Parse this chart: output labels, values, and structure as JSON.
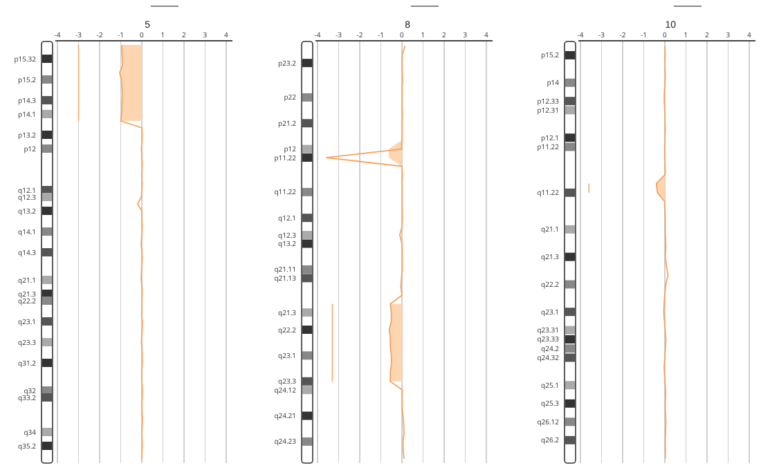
{
  "chart_data": [
    {
      "type": "line",
      "orientation": "horizontal",
      "title": "5",
      "xlim": [
        -4.1,
        4.3
      ],
      "xticks": [
        -4,
        -3,
        -2,
        -1,
        0,
        1,
        2,
        3,
        4
      ],
      "grid": "x",
      "categories": [
        null,
        null,
        "p15.32",
        null,
        null,
        "p15.2",
        null,
        null,
        "p14.3",
        null,
        "p14.1",
        null,
        null,
        "p13.2",
        null,
        "p12",
        null,
        null,
        null,
        null,
        null,
        "q12.1",
        "q12.3",
        null,
        "q13.2",
        null,
        null,
        "q14.1",
        null,
        null,
        "q14.3",
        null,
        null,
        null,
        "q21.1",
        null,
        "q21.3",
        "q22.2",
        null,
        null,
        "q23.1",
        null,
        null,
        "q23.3",
        null,
        null,
        "q31.2",
        null,
        null,
        null,
        "q32",
        "q33.2",
        null,
        null,
        null,
        null,
        "q34",
        null,
        "q35.2",
        null,
        null
      ],
      "series": [
        {
          "type": "area",
          "color": "#fdd5b1",
          "values": [
            -0.95,
            -0.95,
            -0.93,
            -0.92,
            -1.05,
            -0.97,
            -0.95,
            -0.93,
            -0.94,
            -0.95,
            -0.96,
            -1.0,
            null,
            null,
            null,
            null,
            null,
            null,
            null,
            null,
            null,
            null,
            null,
            null,
            null,
            null,
            null,
            null,
            null,
            null,
            null,
            null,
            null,
            null,
            null,
            null,
            null,
            null,
            null,
            null,
            null,
            null,
            null,
            null,
            null,
            null,
            null,
            null,
            null,
            null,
            null,
            null,
            null,
            null,
            null,
            null,
            null,
            null,
            null,
            null,
            null
          ]
        },
        {
          "color": "#f5a35c",
          "values": [
            -0.95,
            -0.95,
            -0.93,
            -0.92,
            -1.05,
            -0.97,
            -0.95,
            -0.93,
            -0.94,
            -0.95,
            -0.96,
            -1.0,
            0,
            0.02,
            0.01,
            -0.02,
            0,
            0.02,
            0.01,
            -0.01,
            0.02,
            0,
            -0.02,
            -0.2,
            0,
            0,
            0.02,
            0.01,
            -0.01,
            -0.03,
            0.01,
            0.02,
            0,
            -0.02,
            -0.03,
            0.01,
            0.02,
            0,
            0.01,
            -0.01,
            0.03,
            0.02,
            0,
            -0.02,
            0.01,
            0.02,
            0.02,
            0,
            -0.01,
            0.01,
            0.03,
            0.02,
            0,
            0.01,
            0.03,
            0.02,
            0,
            0.01,
            0.02,
            0.01,
            0
          ]
        },
        {
          "color": "#f7b27a",
          "values": [
            -3,
            -3,
            -3,
            -3,
            -3,
            -3,
            -3,
            -3,
            -3,
            -3,
            -3,
            -3,
            null,
            null,
            null,
            null,
            null,
            null,
            null,
            null,
            null,
            null,
            null,
            null,
            null,
            null,
            null,
            null,
            null,
            null,
            null,
            null,
            null,
            null,
            null,
            null,
            null,
            null,
            null,
            null,
            null,
            null,
            null,
            null,
            null,
            null,
            null,
            null,
            null,
            null,
            null,
            null,
            null,
            null,
            null,
            null,
            null,
            null,
            null,
            null,
            null
          ]
        }
      ]
    },
    {
      "type": "line",
      "orientation": "horizontal",
      "title": "8",
      "xlim": [
        -4.1,
        4.3
      ],
      "xticks": [
        -4,
        -3,
        -2,
        -1,
        0,
        1,
        2,
        3,
        4
      ],
      "grid": "x",
      "categories": [
        null,
        null,
        "p23.2",
        null,
        null,
        null,
        "p22",
        null,
        null,
        "p21.2",
        null,
        null,
        "p12",
        "p11.22",
        null,
        null,
        null,
        "q11.22",
        null,
        null,
        "q12.1",
        null,
        "q12.3",
        "q13.2",
        null,
        null,
        "q21.11",
        "q21.13",
        null,
        null,
        null,
        "q21.3",
        null,
        "q22.2",
        null,
        null,
        "q23.1",
        null,
        null,
        "q23.3",
        "q24.12",
        null,
        null,
        "q24.21",
        null,
        null,
        "q24.23",
        null,
        null
      ],
      "series": [
        {
          "type": "area",
          "color": "#fdd5b1",
          "values": [
            null,
            null,
            null,
            null,
            null,
            null,
            null,
            null,
            null,
            null,
            null,
            0,
            -0.6,
            -0.6,
            0,
            null,
            null,
            null,
            null,
            null,
            null,
            null,
            null,
            null,
            null,
            null,
            null,
            null,
            null,
            null,
            null,
            null,
            null,
            null,
            null,
            null,
            null,
            null,
            null,
            null,
            null,
            null,
            null,
            null,
            null,
            null,
            null,
            null,
            null
          ]
        },
        {
          "type": "area",
          "color": "#fdd5b1",
          "values": [
            null,
            null,
            null,
            null,
            null,
            null,
            null,
            null,
            null,
            null,
            null,
            null,
            null,
            null,
            null,
            null,
            null,
            null,
            null,
            null,
            null,
            null,
            null,
            null,
            null,
            null,
            null,
            null,
            null,
            null,
            -0.55,
            -0.5,
            -0.5,
            -0.6,
            -0.55,
            -0.55,
            -0.5,
            -0.5,
            -0.55,
            -0.55,
            null,
            null,
            null,
            null,
            null,
            null,
            null,
            null,
            null
          ]
        },
        {
          "color": "#f5a35c",
          "values": [
            0.15,
            0.02,
            0,
            0.01,
            0.03,
            0,
            0.01,
            0,
            0.02,
            0,
            0.01,
            0,
            -0.02,
            -3.6,
            0,
            0.02,
            0,
            0.01,
            0,
            0.01,
            0.02,
            0,
            -0.1,
            0,
            0.02,
            0.01,
            0.02,
            -0.02,
            -0.05,
            0,
            -0.55,
            -0.5,
            -0.5,
            -0.6,
            -0.55,
            -0.55,
            -0.5,
            -0.5,
            -0.55,
            -0.55,
            0.02,
            0,
            0.01,
            0.05,
            0.08,
            0.1,
            0.05,
            0.06,
            0.1
          ]
        },
        {
          "color": "#f7b27a",
          "values": [
            null,
            null,
            null,
            null,
            null,
            null,
            null,
            null,
            null,
            null,
            null,
            null,
            null,
            null,
            null,
            null,
            null,
            null,
            null,
            null,
            null,
            null,
            null,
            null,
            null,
            null,
            null,
            null,
            null,
            null,
            -3.3,
            -3.3,
            -3.3,
            -3.3,
            -3.3,
            -3.3,
            -3.3,
            -3.3,
            -3.3,
            -3.3,
            null,
            null,
            null,
            null,
            null,
            null,
            null,
            null,
            null
          ]
        }
      ]
    },
    {
      "type": "line",
      "orientation": "horizontal",
      "title": "10",
      "xlim": [
        -4.1,
        4.3
      ],
      "xticks": [
        -4,
        -3,
        -2,
        -1,
        0,
        1,
        2,
        3,
        4
      ],
      "grid": "x",
      "categories": [
        null,
        "p15.2",
        null,
        null,
        "p14",
        null,
        "p12.33",
        "p12.31",
        null,
        null,
        "p12.1",
        "p11.22",
        null,
        null,
        null,
        null,
        "q11.22",
        null,
        null,
        null,
        "q21.1",
        null,
        null,
        "q21.3",
        null,
        null,
        "q22.2",
        null,
        null,
        "q23.1",
        null,
        "q23.31",
        "q23.33",
        "q24.2",
        "q24.32",
        null,
        null,
        "q25.1",
        null,
        "q25.3",
        null,
        "q26.12",
        null,
        "q26.2",
        null,
        null
      ],
      "series": [
        {
          "type": "area",
          "color": "#fdd5b1",
          "values": [
            null,
            null,
            null,
            null,
            null,
            null,
            null,
            null,
            null,
            null,
            null,
            null,
            null,
            null,
            0.02,
            -0.4,
            -0.35,
            0,
            null,
            null,
            null,
            null,
            null,
            null,
            null,
            null,
            null,
            null,
            null,
            null,
            null,
            null,
            null,
            null,
            null,
            null,
            null,
            null,
            null,
            null,
            null,
            null,
            null,
            null,
            null,
            null
          ]
        },
        {
          "color": "#f5a35c",
          "values": [
            0,
            0.02,
            0,
            0.02,
            0.01,
            -0.02,
            -0.03,
            0,
            0.01,
            0.02,
            0.01,
            0,
            0,
            0.01,
            0.02,
            -0.4,
            -0.35,
            0,
            0.01,
            0.02,
            0.02,
            0.03,
            0.05,
            0.02,
            0.08,
            0.15,
            0.05,
            0,
            -0.03,
            -0.05,
            -0.02,
            0.02,
            0.05,
            0.03,
            0,
            -0.03,
            -0.01,
            0.02,
            0.04,
            0.02,
            0.03,
            0.05,
            0.04,
            0.02,
            0.03,
            0.02
          ]
        },
        {
          "color": "#f7b27a",
          "values": [
            null,
            null,
            null,
            null,
            null,
            null,
            null,
            null,
            null,
            null,
            null,
            null,
            null,
            null,
            null,
            -3.6,
            -3.6,
            null,
            null,
            null,
            null,
            null,
            null,
            null,
            null,
            null,
            null,
            null,
            null,
            null,
            null,
            null,
            null,
            null,
            null,
            null,
            null,
            null,
            null,
            null,
            null,
            null,
            null,
            null,
            null,
            null
          ]
        }
      ]
    }
  ]
}
